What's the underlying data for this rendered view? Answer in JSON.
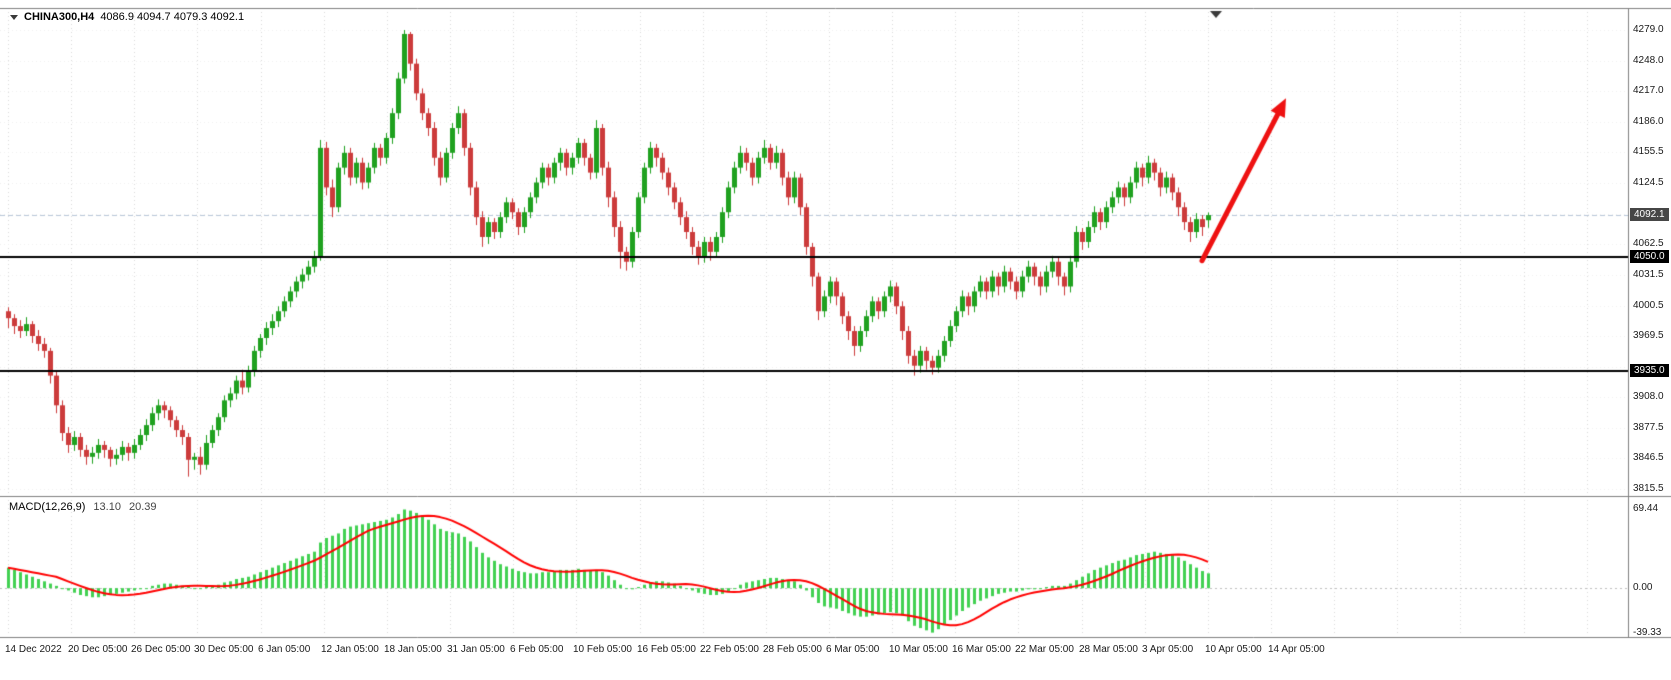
{
  "header": {
    "symbol_period": "CHINA300,H4",
    "ohlc": "4086.9 4094.7 4079.3 4092.1",
    "open": "4086.9",
    "high": "4094.7",
    "low": "4079.3",
    "close": "4092.1"
  },
  "colors": {
    "bull": "#1fa11f",
    "bear": "#cc3b3b",
    "hist": "#42d152",
    "signal": "#ff0000",
    "arrow": "#ee1111",
    "grid_v": "#d8d8d8",
    "grid_h": "#efefef",
    "axis_text": "#1a1a1a",
    "hline": "#000000",
    "current_line": "#b9c7d9",
    "badge_current_bg": "#464646",
    "separator": "#7f7f7f"
  },
  "chart_data": {
    "type": "candlestick",
    "symbol": "CHINA300",
    "timeframe": "H4",
    "x_labels": [
      "14 Dec 2022",
      "20 Dec 05:00",
      "26 Dec 05:00",
      "30 Dec 05:00",
      "6 Jan 05:00",
      "12 Jan 05:00",
      "18 Jan 05:00",
      "31 Jan 05:00",
      "6 Feb 05:00",
      "10 Feb 05:00",
      "16 Feb 05:00",
      "22 Feb 05:00",
      "28 Feb 05:00",
      "6 Mar 05:00",
      "10 Mar 05:00",
      "16 Mar 05:00",
      "22 Mar 05:00",
      "28 Mar 05:00",
      "3 Apr 05:00",
      "10 Apr 05:00",
      "14 Apr 05:00"
    ],
    "price_axis": {
      "max": 4279.0,
      "min": 3815.5,
      "labels": [
        "4279.0",
        "4248.0",
        "4217.0",
        "4186.0",
        "4155.5",
        "4124.5",
        "4062.5",
        "4031.5",
        "4000.5",
        "3969.5",
        "3908.0",
        "3877.5",
        "3846.5",
        "3815.5"
      ],
      "grid_prices": [
        4279,
        4248,
        4217,
        4186,
        4155.5,
        4124.5,
        4093.5,
        4062.5,
        4031.5,
        4000.5,
        3969.5,
        3938.5,
        3908,
        3877.5,
        3846.5,
        3815.5
      ],
      "current_price": 4092.1,
      "current_label": "4092.1"
    },
    "hlines": [
      {
        "price": 4050.0,
        "label": "4050.0"
      },
      {
        "price": 3935.0,
        "label": "3935.0"
      }
    ],
    "arrow": {
      "from_bar": 199,
      "from_price": 4046,
      "to_bar": 213,
      "to_price": 4210
    },
    "candles": [
      [
        3995,
        3999,
        3978,
        3988
      ],
      [
        3988,
        3992,
        3972,
        3980
      ],
      [
        3980,
        3986,
        3968,
        3975
      ],
      [
        3975,
        3989,
        3970,
        3982
      ],
      [
        3982,
        3985,
        3963,
        3970
      ],
      [
        3970,
        3976,
        3955,
        3962
      ],
      [
        3962,
        3968,
        3948,
        3955
      ],
      [
        3955,
        3958,
        3922,
        3930
      ],
      [
        3930,
        3934,
        3892,
        3900
      ],
      [
        3900,
        3905,
        3864,
        3872
      ],
      [
        3872,
        3878,
        3852,
        3860
      ],
      [
        3860,
        3874,
        3854,
        3868
      ],
      [
        3868,
        3872,
        3848,
        3855
      ],
      [
        3855,
        3860,
        3840,
        3848
      ],
      [
        3848,
        3858,
        3841,
        3852
      ],
      [
        3852,
        3866,
        3846,
        3860
      ],
      [
        3860,
        3864,
        3847,
        3855
      ],
      [
        3855,
        3858,
        3838,
        3846
      ],
      [
        3846,
        3856,
        3840,
        3850
      ],
      [
        3850,
        3864,
        3844,
        3858
      ],
      [
        3858,
        3862,
        3844,
        3852
      ],
      [
        3852,
        3866,
        3846,
        3860
      ],
      [
        3860,
        3876,
        3855,
        3870
      ],
      [
        3870,
        3886,
        3864,
        3880
      ],
      [
        3880,
        3898,
        3874,
        3892
      ],
      [
        3892,
        3906,
        3885,
        3900
      ],
      [
        3900,
        3904,
        3887,
        3895
      ],
      [
        3895,
        3899,
        3878,
        3885
      ],
      [
        3885,
        3889,
        3868,
        3875
      ],
      [
        3875,
        3880,
        3860,
        3868
      ],
      [
        3868,
        3872,
        3828,
        3845
      ],
      [
        3845,
        3852,
        3835,
        3848
      ],
      [
        3848,
        3858,
        3830,
        3840
      ],
      [
        3840,
        3870,
        3835,
        3862
      ],
      [
        3862,
        3880,
        3857,
        3875
      ],
      [
        3875,
        3892,
        3869,
        3888
      ],
      [
        3888,
        3910,
        3883,
        3905
      ],
      [
        3905,
        3918,
        3898,
        3912
      ],
      [
        3912,
        3930,
        3906,
        3925
      ],
      [
        3925,
        3936,
        3911,
        3918
      ],
      [
        3918,
        3940,
        3913,
        3935
      ],
      [
        3935,
        3960,
        3929,
        3955
      ],
      [
        3955,
        3972,
        3948,
        3968
      ],
      [
        3968,
        3984,
        3961,
        3978
      ],
      [
        3978,
        3992,
        3971,
        3985
      ],
      [
        3985,
        4000,
        3979,
        3995
      ],
      [
        3995,
        4010,
        3989,
        4005
      ],
      [
        4005,
        4020,
        3999,
        4015
      ],
      [
        4015,
        4030,
        4009,
        4025
      ],
      [
        4025,
        4038,
        4018,
        4032
      ],
      [
        4032,
        4046,
        4026,
        4040
      ],
      [
        4040,
        4056,
        4034,
        4050
      ],
      [
        4050,
        4168,
        4046,
        4160
      ],
      [
        4160,
        4166,
        4112,
        4120
      ],
      [
        4120,
        4128,
        4090,
        4100
      ],
      [
        4100,
        4145,
        4095,
        4140
      ],
      [
        4140,
        4162,
        4133,
        4155
      ],
      [
        4155,
        4160,
        4122,
        4130
      ],
      [
        4130,
        4150,
        4124,
        4145
      ],
      [
        4145,
        4150,
        4118,
        4125
      ],
      [
        4125,
        4145,
        4119,
        4140
      ],
      [
        4140,
        4165,
        4134,
        4160
      ],
      [
        4160,
        4164,
        4142,
        4150
      ],
      [
        4150,
        4175,
        4144,
        4170
      ],
      [
        4170,
        4200,
        4164,
        4195
      ],
      [
        4195,
        4236,
        4189,
        4230
      ],
      [
        4230,
        4279,
        4225,
        4275
      ],
      [
        4275,
        4277,
        4238,
        4245
      ],
      [
        4245,
        4250,
        4208,
        4215
      ],
      [
        4215,
        4220,
        4188,
        4195
      ],
      [
        4195,
        4200,
        4172,
        4180
      ],
      [
        4180,
        4186,
        4142,
        4150
      ],
      [
        4150,
        4156,
        4122,
        4130
      ],
      [
        4130,
        4160,
        4125,
        4155
      ],
      [
        4155,
        4185,
        4149,
        4180
      ],
      [
        4180,
        4202,
        4174,
        4195
      ],
      [
        4195,
        4199,
        4152,
        4160
      ],
      [
        4160,
        4165,
        4112,
        4120
      ],
      [
        4120,
        4126,
        4082,
        4090
      ],
      [
        4090,
        4096,
        4060,
        4070
      ],
      [
        4070,
        4090,
        4063,
        4085
      ],
      [
        4085,
        4089,
        4068,
        4075
      ],
      [
        4075,
        4095,
        4069,
        4090
      ],
      [
        4090,
        4110,
        4084,
        4105
      ],
      [
        4105,
        4109,
        4088,
        4095
      ],
      [
        4095,
        4099,
        4072,
        4080
      ],
      [
        4080,
        4100,
        4074,
        4095
      ],
      [
        4095,
        4115,
        4089,
        4110
      ],
      [
        4110,
        4130,
        4104,
        4125
      ],
      [
        4125,
        4145,
        4119,
        4140
      ],
      [
        4140,
        4144,
        4122,
        4130
      ],
      [
        4130,
        4150,
        4124,
        4145
      ],
      [
        4145,
        4160,
        4137,
        4155
      ],
      [
        4155,
        4159,
        4132,
        4140
      ],
      [
        4140,
        4155,
        4133,
        4150
      ],
      [
        4150,
        4170,
        4144,
        4165
      ],
      [
        4165,
        4169,
        4142,
        4150
      ],
      [
        4150,
        4154,
        4128,
        4135
      ],
      [
        4135,
        4188,
        4129,
        4180
      ],
      [
        4180,
        4184,
        4132,
        4140
      ],
      [
        4140,
        4146,
        4100,
        4110
      ],
      [
        4110,
        4116,
        4070,
        4080
      ],
      [
        4080,
        4086,
        4038,
        4055
      ],
      [
        4055,
        4060,
        4036,
        4045
      ],
      [
        4045,
        4080,
        4039,
        4075
      ],
      [
        4075,
        4115,
        4069,
        4110
      ],
      [
        4110,
        4145,
        4104,
        4140
      ],
      [
        4140,
        4166,
        4134,
        4160
      ],
      [
        4160,
        4164,
        4141,
        4150
      ],
      [
        4150,
        4155,
        4128,
        4135
      ],
      [
        4135,
        4140,
        4112,
        4120
      ],
      [
        4120,
        4125,
        4098,
        4105
      ],
      [
        4105,
        4110,
        4082,
        4090
      ],
      [
        4090,
        4096,
        4068,
        4075
      ],
      [
        4075,
        4080,
        4052,
        4060
      ],
      [
        4060,
        4066,
        4042,
        4050
      ],
      [
        4050,
        4070,
        4044,
        4065
      ],
      [
        4065,
        4070,
        4046,
        4055
      ],
      [
        4055,
        4075,
        4049,
        4070
      ],
      [
        4070,
        4100,
        4064,
        4095
      ],
      [
        4095,
        4126,
        4089,
        4120
      ],
      [
        4120,
        4146,
        4114,
        4140
      ],
      [
        4140,
        4162,
        4134,
        4155
      ],
      [
        4155,
        4160,
        4137,
        4145
      ],
      [
        4145,
        4150,
        4122,
        4130
      ],
      [
        4130,
        4156,
        4124,
        4150
      ],
      [
        4150,
        4168,
        4144,
        4160
      ],
      [
        4160,
        4164,
        4138,
        4145
      ],
      [
        4145,
        4162,
        4139,
        4155
      ],
      [
        4155,
        4159,
        4122,
        4130
      ],
      [
        4130,
        4136,
        4102,
        4110
      ],
      [
        4110,
        4136,
        4104,
        4130
      ],
      [
        4130,
        4134,
        4092,
        4100
      ],
      [
        4100,
        4104,
        4052,
        4060
      ],
      [
        4060,
        4064,
        4020,
        4030
      ],
      [
        4030,
        4034,
        3986,
        3995
      ],
      [
        3995,
        4016,
        3989,
        4010
      ],
      [
        4010,
        4030,
        4003,
        4025
      ],
      [
        4025,
        4029,
        4001,
        4010
      ],
      [
        4010,
        4014,
        3982,
        3990
      ],
      [
        3990,
        3995,
        3966,
        3975
      ],
      [
        3975,
        3980,
        3950,
        3960
      ],
      [
        3960,
        3980,
        3954,
        3975
      ],
      [
        3975,
        3996,
        3969,
        3990
      ],
      [
        3990,
        4010,
        3984,
        4005
      ],
      [
        4005,
        4009,
        3987,
        3995
      ],
      [
        3995,
        4015,
        3989,
        4010
      ],
      [
        4010,
        4026,
        4004,
        4020
      ],
      [
        4020,
        4024,
        3992,
        4000
      ],
      [
        4000,
        4005,
        3966,
        3975
      ],
      [
        3975,
        3980,
        3942,
        3950
      ],
      [
        3950,
        3956,
        3930,
        3940
      ],
      [
        3940,
        3960,
        3933,
        3955
      ],
      [
        3955,
        3959,
        3936,
        3945
      ],
      [
        3945,
        3950,
        3931,
        3938
      ],
      [
        3938,
        3956,
        3933,
        3950
      ],
      [
        3950,
        3970,
        3944,
        3965
      ],
      [
        3965,
        3986,
        3959,
        3980
      ],
      [
        3980,
        4000,
        3974,
        3995
      ],
      [
        3995,
        4016,
        3989,
        4010
      ],
      [
        4010,
        4014,
        3991,
        4000
      ],
      [
        4000,
        4020,
        3994,
        4015
      ],
      [
        4015,
        4031,
        4009,
        4025
      ],
      [
        4025,
        4029,
        4007,
        4015
      ],
      [
        4015,
        4036,
        4009,
        4030
      ],
      [
        4030,
        4034,
        4011,
        4020
      ],
      [
        4020,
        4041,
        4014,
        4035
      ],
      [
        4035,
        4039,
        4017,
        4025
      ],
      [
        4025,
        4030,
        4007,
        4015
      ],
      [
        4015,
        4036,
        4009,
        4030
      ],
      [
        4030,
        4046,
        4024,
        4040
      ],
      [
        4040,
        4044,
        4021,
        4030
      ],
      [
        4030,
        4035,
        4011,
        4020
      ],
      [
        4020,
        4041,
        4014,
        4035
      ],
      [
        4035,
        4051,
        4029,
        4045
      ],
      [
        4045,
        4049,
        4021,
        4030
      ],
      [
        4030,
        4034,
        4011,
        4020
      ],
      [
        4020,
        4051,
        4014,
        4045
      ],
      [
        4045,
        4081,
        4039,
        4075
      ],
      [
        4075,
        4079,
        4057,
        4065
      ],
      [
        4065,
        4086,
        4059,
        4080
      ],
      [
        4080,
        4101,
        4074,
        4095
      ],
      [
        4095,
        4099,
        4077,
        4085
      ],
      [
        4085,
        4106,
        4079,
        4100
      ],
      [
        4100,
        4116,
        4094,
        4110
      ],
      [
        4110,
        4126,
        4104,
        4120
      ],
      [
        4120,
        4124,
        4101,
        4110
      ],
      [
        4110,
        4131,
        4104,
        4125
      ],
      [
        4125,
        4146,
        4119,
        4140
      ],
      [
        4140,
        4144,
        4121,
        4130
      ],
      [
        4130,
        4152,
        4124,
        4145
      ],
      [
        4145,
        4149,
        4127,
        4135
      ],
      [
        4135,
        4140,
        4111,
        4120
      ],
      [
        4120,
        4136,
        4114,
        4130
      ],
      [
        4130,
        4134,
        4107,
        4115
      ],
      [
        4115,
        4120,
        4091,
        4100
      ],
      [
        4100,
        4105,
        4077,
        4085
      ],
      [
        4085,
        4090,
        4065,
        4075
      ],
      [
        4075,
        4094,
        4069,
        4088
      ],
      [
        4088,
        4092,
        4071,
        4080
      ],
      [
        4086.9,
        4094.7,
        4079.3,
        4092.1
      ]
    ],
    "indicator": {
      "name": "MACD",
      "label": "MACD(12,26,9)",
      "value_main": "13.10",
      "value_signal": "20.39",
      "axis": [
        {
          "value": 69.44,
          "label": "69.44"
        },
        {
          "value": 0,
          "label": "0.00"
        },
        {
          "value": -39.33,
          "label": "-39.33"
        }
      ],
      "y_max": 69.44,
      "y_min": -39.33,
      "histogram": [
        18,
        16,
        14,
        12,
        10,
        8,
        6,
        4,
        2,
        0,
        -2,
        -4,
        -6,
        -7,
        -8,
        -8,
        -7,
        -6,
        -5,
        -4,
        -3,
        -2,
        -1,
        0,
        2,
        3,
        4,
        4,
        3,
        2,
        1,
        0,
        0,
        1,
        2,
        3,
        5,
        6,
        8,
        9,
        10,
        12,
        14,
        16,
        18,
        20,
        22,
        24,
        26,
        28,
        30,
        32,
        40,
        44,
        46,
        48,
        52,
        54,
        55,
        56,
        57,
        58,
        59,
        60,
        62,
        65,
        69,
        68,
        66,
        63,
        60,
        56,
        52,
        50,
        49,
        48,
        45,
        41,
        36,
        31,
        27,
        24,
        21,
        19,
        17,
        15,
        14,
        13,
        13,
        14,
        14,
        15,
        16,
        16,
        16,
        17,
        16,
        15,
        16,
        14,
        11,
        7,
        3,
        0,
        -1,
        1,
        3,
        5,
        6,
        6,
        5,
        4,
        2,
        0,
        -2,
        -4,
        -5,
        -6,
        -6,
        -5,
        -3,
        0,
        3,
        5,
        6,
        7,
        8,
        9,
        9,
        8,
        7,
        6,
        3,
        -2,
        -8,
        -13,
        -16,
        -17,
        -18,
        -20,
        -22,
        -24,
        -25,
        -25,
        -24,
        -23,
        -22,
        -21,
        -22,
        -24,
        -29,
        -33,
        -35,
        -37,
        -39,
        -36,
        -32,
        -28,
        -24,
        -20,
        -17,
        -14,
        -11,
        -9,
        -7,
        -5,
        -4,
        -3,
        -3,
        -2,
        -1,
        -1,
        0,
        1,
        2,
        2,
        2,
        4,
        7,
        10,
        13,
        16,
        18,
        20,
        22,
        24,
        25,
        27,
        29,
        30,
        31,
        32,
        31,
        30,
        29,
        27,
        24,
        21,
        18,
        15,
        13
      ]
    }
  }
}
